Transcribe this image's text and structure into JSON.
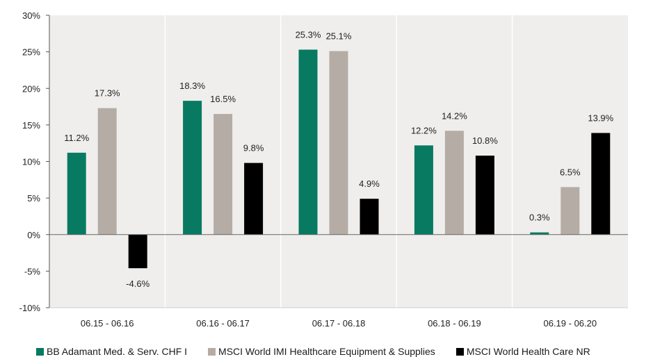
{
  "chart_data": {
    "type": "bar",
    "title": "",
    "xlabel": "",
    "ylabel": "",
    "categories": [
      "06.15 - 06.16",
      "06.16 - 06.17",
      "06.17 - 06.18",
      "06.18 - 06.19",
      "06.19 - 06.20"
    ],
    "series": [
      {
        "name": "BB Adamant Med. & Serv. CHF I",
        "color": "#087a62",
        "values": [
          11.2,
          18.3,
          25.3,
          12.2,
          0.3
        ],
        "labels": [
          "11.2%",
          "18.3%",
          "25.3%",
          "12.2%",
          "0.3%"
        ]
      },
      {
        "name": "MSCI World IMI Healthcare Equipment & Supplies",
        "color": "#b5aca6",
        "values": [
          17.3,
          16.5,
          25.1,
          14.2,
          6.5
        ],
        "labels": [
          "17.3%",
          "16.5%",
          "25.1%",
          "14.2%",
          "6.5%"
        ]
      },
      {
        "name": "MSCI World Health Care NR",
        "color": "#000000",
        "values": [
          -4.6,
          9.8,
          4.9,
          10.8,
          13.9
        ],
        "labels": [
          "-4.6%",
          "9.8%",
          "4.9%",
          "10.8%",
          "13.9%"
        ]
      }
    ],
    "ylim": [
      -10,
      30
    ],
    "yticks": [
      30,
      25,
      20,
      15,
      10,
      5,
      0,
      -5,
      -10
    ],
    "ytick_labels": [
      "30%",
      "25%",
      "20%",
      "15%",
      "10%",
      "5%",
      "0%",
      "-5%",
      "-10%"
    ],
    "grid": false,
    "background": "#efeeec",
    "legend_position": "bottom"
  }
}
